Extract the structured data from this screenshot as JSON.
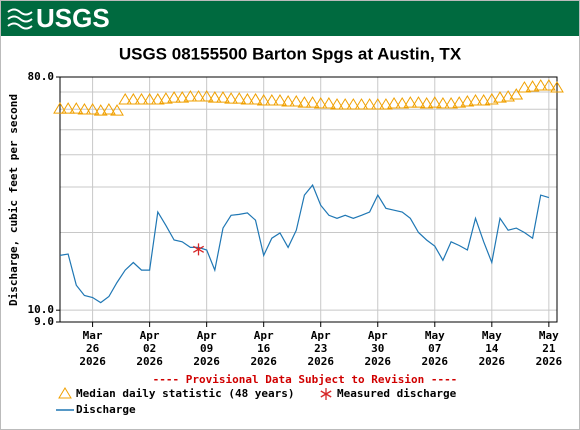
{
  "header": {
    "logo": "USGS"
  },
  "chart_data": {
    "type": "line",
    "title": "USGS 08155500 Barton Spgs at Austin, TX",
    "ylabel": "Discharge, cubic feet per second",
    "note": "---- Provisional Data Subject to Revision ----",
    "log_y": true,
    "grid": true,
    "ylim": [
      9,
      80
    ],
    "yticks": [
      {
        "value": 9,
        "label": "9.0"
      },
      {
        "value": 10,
        "label": "10.0"
      },
      {
        "value": 80,
        "label": "80.0"
      }
    ],
    "ygrid": [
      20,
      30,
      40,
      50,
      60,
      70
    ],
    "xlim": [
      "2026-03-22",
      "2026-05-22"
    ],
    "xticks": [
      {
        "value": "2026-03-26",
        "label": [
          "Mar",
          "26",
          "2026"
        ]
      },
      {
        "value": "2026-04-02",
        "label": [
          "Apr",
          "02",
          "2026"
        ]
      },
      {
        "value": "2026-04-09",
        "label": [
          "Apr",
          "09",
          "2026"
        ]
      },
      {
        "value": "2026-04-16",
        "label": [
          "Apr",
          "16",
          "2026"
        ]
      },
      {
        "value": "2026-04-23",
        "label": [
          "Apr",
          "23",
          "2026"
        ]
      },
      {
        "value": "2026-04-30",
        "label": [
          "Apr",
          "30",
          "2026"
        ]
      },
      {
        "value": "2026-05-07",
        "label": [
          "May",
          "07",
          "2026"
        ]
      },
      {
        "value": "2026-05-14",
        "label": [
          "May",
          "14",
          "2026"
        ]
      },
      {
        "value": "2026-05-21",
        "label": [
          "May",
          "21",
          "2026"
        ]
      }
    ],
    "series": [
      {
        "name": "Median daily statistic (48 years)",
        "color": "#f0a000",
        "marker": "triangle",
        "x": [
          "2026-03-22",
          "2026-03-23",
          "2026-03-24",
          "2026-03-25",
          "2026-03-26",
          "2026-03-27",
          "2026-03-28",
          "2026-03-29",
          "2026-03-30",
          "2026-03-31",
          "2026-04-01",
          "2026-04-02",
          "2026-04-03",
          "2026-04-04",
          "2026-04-05",
          "2026-04-06",
          "2026-04-07",
          "2026-04-08",
          "2026-04-09",
          "2026-04-10",
          "2026-04-11",
          "2026-04-12",
          "2026-04-13",
          "2026-04-14",
          "2026-04-15",
          "2026-04-16",
          "2026-04-17",
          "2026-04-18",
          "2026-04-19",
          "2026-04-20",
          "2026-04-21",
          "2026-04-22",
          "2026-04-23",
          "2026-04-24",
          "2026-04-25",
          "2026-04-26",
          "2026-04-27",
          "2026-04-28",
          "2026-04-29",
          "2026-04-30",
          "2026-05-01",
          "2026-05-02",
          "2026-05-03",
          "2026-05-04",
          "2026-05-05",
          "2026-05-06",
          "2026-05-07",
          "2026-05-08",
          "2026-05-09",
          "2026-05-10",
          "2026-05-11",
          "2026-05-12",
          "2026-05-13",
          "2026-05-14",
          "2026-05-15",
          "2026-05-16",
          "2026-05-17",
          "2026-05-18",
          "2026-05-19",
          "2026-05-20",
          "2026-05-21",
          "2026-05-22"
        ],
        "values": [
          60.1,
          60.1,
          60.1,
          59.6,
          59.6,
          59.0,
          59.6,
          59.0,
          65.2,
          65.2,
          65.2,
          65.2,
          65.2,
          65.7,
          66.3,
          66.3,
          66.9,
          66.9,
          66.9,
          66.3,
          66.3,
          65.7,
          65.7,
          65.2,
          65.2,
          64.6,
          64.6,
          64.6,
          64.0,
          64.0,
          63.4,
          63.4,
          62.9,
          62.9,
          62.3,
          62.3,
          62.3,
          62.3,
          62.3,
          62.3,
          62.3,
          62.9,
          62.9,
          63.4,
          63.4,
          62.9,
          63.4,
          62.9,
          62.9,
          63.4,
          64.0,
          64.6,
          64.6,
          65.2,
          66.3,
          66.9,
          68.1,
          72.5,
          73.1,
          73.8,
          73.8,
          72.5
        ]
      },
      {
        "name": "Discharge",
        "color": "#1f77b4",
        "marker": "line",
        "x": [
          "2026-03-22",
          "2026-03-23",
          "2026-03-24",
          "2026-03-25",
          "2026-03-26",
          "2026-03-27",
          "2026-03-28",
          "2026-03-29",
          "2026-03-30",
          "2026-03-31",
          "2026-04-01",
          "2026-04-02",
          "2026-04-03",
          "2026-04-04",
          "2026-04-05",
          "2026-04-06",
          "2026-04-07",
          "2026-04-08",
          "2026-04-09",
          "2026-04-10",
          "2026-04-11",
          "2026-04-12",
          "2026-04-13",
          "2026-04-14",
          "2026-04-15",
          "2026-04-16",
          "2026-04-17",
          "2026-04-18",
          "2026-04-19",
          "2026-04-20",
          "2026-04-21",
          "2026-04-22",
          "2026-04-23",
          "2026-04-24",
          "2026-04-25",
          "2026-04-26",
          "2026-04-27",
          "2026-04-28",
          "2026-04-29",
          "2026-04-30",
          "2026-05-01",
          "2026-05-02",
          "2026-05-03",
          "2026-05-04",
          "2026-05-05",
          "2026-05-06",
          "2026-05-07",
          "2026-05-08",
          "2026-05-09",
          "2026-05-10",
          "2026-05-11",
          "2026-05-12",
          "2026-05-13",
          "2026-05-14",
          "2026-05-15",
          "2026-05-16",
          "2026-05-17",
          "2026-05-18",
          "2026-05-19",
          "2026-05-20",
          "2026-05-21"
        ],
        "values": [
          16.3,
          16.5,
          12.5,
          11.4,
          11.2,
          10.7,
          11.3,
          12.8,
          14.3,
          15.3,
          14.3,
          14.3,
          24.0,
          21.3,
          18.7,
          18.4,
          17.5,
          17.5,
          17.1,
          14.3,
          20.8,
          23.3,
          23.5,
          23.8,
          22.3,
          16.3,
          19.0,
          19.9,
          17.5,
          20.4,
          27.9,
          30.5,
          25.5,
          23.3,
          22.7,
          23.3,
          22.7,
          23.3,
          24.0,
          27.9,
          24.8,
          24.4,
          24.0,
          22.7,
          20.0,
          18.7,
          17.7,
          15.6,
          18.4,
          17.8,
          17.1,
          22.7,
          18.4,
          15.3,
          22.7,
          20.4,
          20.8,
          20.0,
          19.0,
          27.9,
          27.3
        ]
      },
      {
        "name": "Measured discharge",
        "color": "#d62728",
        "marker": "asterisk",
        "x": [
          "2026-04-08"
        ],
        "values": [
          17.2
        ]
      }
    ]
  }
}
